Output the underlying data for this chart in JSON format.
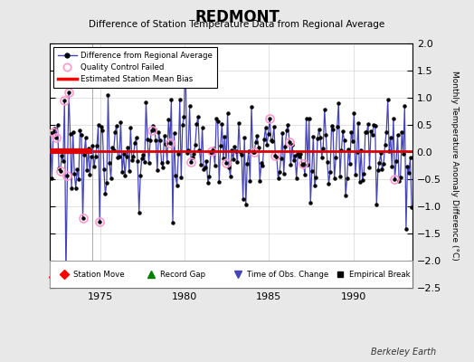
{
  "title": "REDMONT",
  "subtitle": "Difference of Station Temperature Data from Regional Average",
  "ylabel": "Monthly Temperature Anomaly Difference (°C)",
  "xlim": [
    1972.0,
    1993.5
  ],
  "ylim": [
    -2.5,
    2.0
  ],
  "yticks": [
    -2.5,
    -2.0,
    -1.5,
    -1.0,
    -0.5,
    0.0,
    0.5,
    1.0,
    1.5,
    2.0
  ],
  "xticks": [
    1975,
    1980,
    1985,
    1990
  ],
  "bias_value": 0.0,
  "bias_early_end": 1974.5,
  "vertical_line_x": 1974.5,
  "time_of_obs_change_x": 1979.3,
  "record_gap_x": 1974.3,
  "station_move_x": 1972.2,
  "background_color": "#e8e8e8",
  "plot_bg_color": "#ffffff",
  "line_color": "#4444bb",
  "marker_color": "#000000",
  "bias_color_early": "#dd0000",
  "bias_color_late": "#dd0000",
  "qc_fail_color": "#ff99cc",
  "berkeley_earth_text": "Berkeley Earth"
}
